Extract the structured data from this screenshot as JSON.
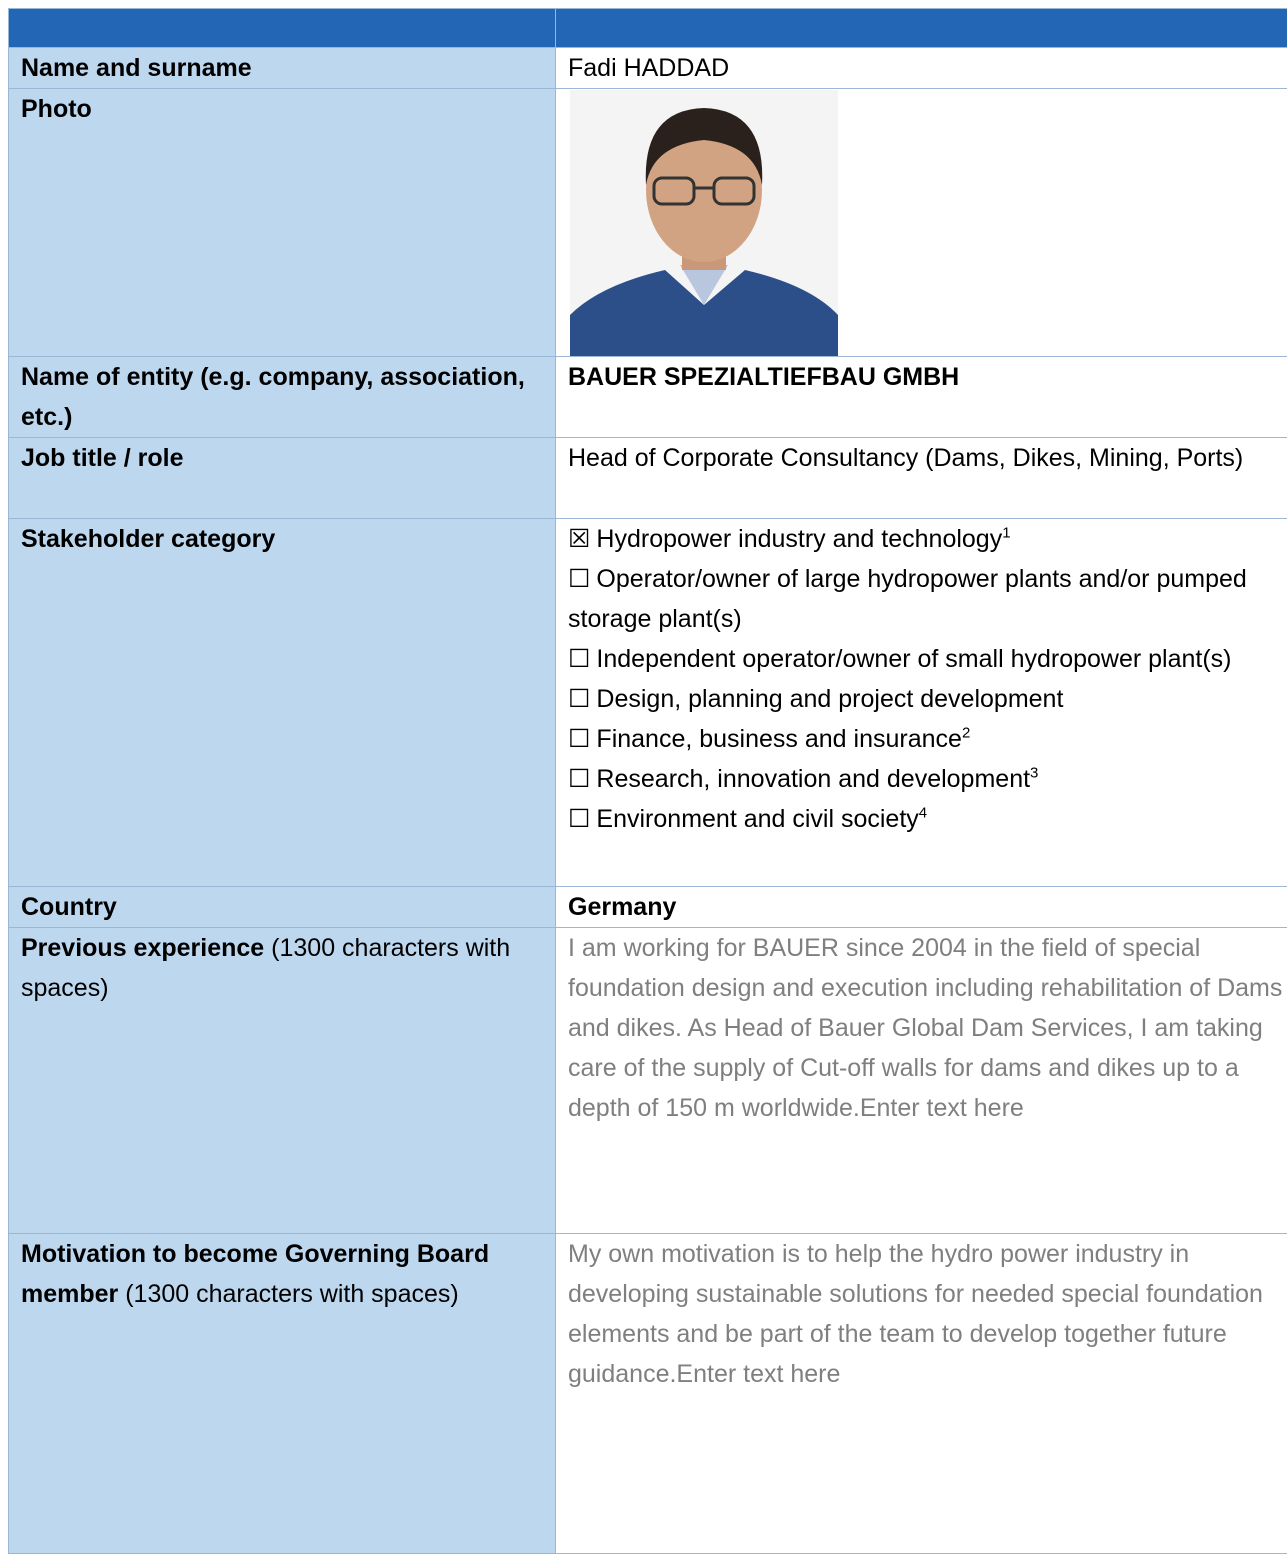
{
  "table": {
    "header": [
      "",
      ""
    ],
    "rows": [
      {
        "label": "Name and surname",
        "value": "Fadi HADDAD"
      },
      {
        "label": "Photo"
      },
      {
        "label": "Name of entity (e.g. company, association, etc.)",
        "value": "BAUER SPEZIALTIEFBAU GMBH"
      },
      {
        "label": "Job title / role",
        "value": "Head of Corporate Consultancy (Dams, Dikes, Mining, Ports)"
      },
      {
        "label": "Stakeholder category",
        "options": [
          {
            "box": "☒",
            "text": "Hydropower industry and technology",
            "note": "1"
          },
          {
            "box": "☐",
            "text": "Operator/owner of large hydropower plants and/or pumped storage plant(s)"
          },
          {
            "box": "☐",
            "text": "Independent operator/owner of small hydropower plant(s)"
          },
          {
            "box": "☐",
            "text": "Design, planning and project development"
          },
          {
            "box": "☐",
            "text": "Finance, business and insurance",
            "note": "2"
          },
          {
            "box": "☐",
            "text": "Research, innovation and development",
            "note": "3"
          },
          {
            "box": "☐",
            "text": "Environment and civil society",
            "note": "4"
          }
        ]
      },
      {
        "label": "Country",
        "value": "Germany"
      },
      {
        "label": "Previous experience",
        "label_note": "(1300 characters with spaces)",
        "value": "I am working for BAUER since 2004 in the field of special foundation design and execution including rehabilitation of Dams and dikes. As Head of Bauer Global Dam Services, I am taking care of the supply of Cut-off walls for dams and dikes up to a depth of 150 m worldwide.Enter text here"
      },
      {
        "label": "Motivation to become Governing Board member",
        "label_note": "(1300 characters with spaces)",
        "value": "My own motivation is to help the hydro power industry in developing sustainable solutions for needed special foundation elements and be part of the team to develop together future guidance.Enter text here"
      }
    ]
  }
}
